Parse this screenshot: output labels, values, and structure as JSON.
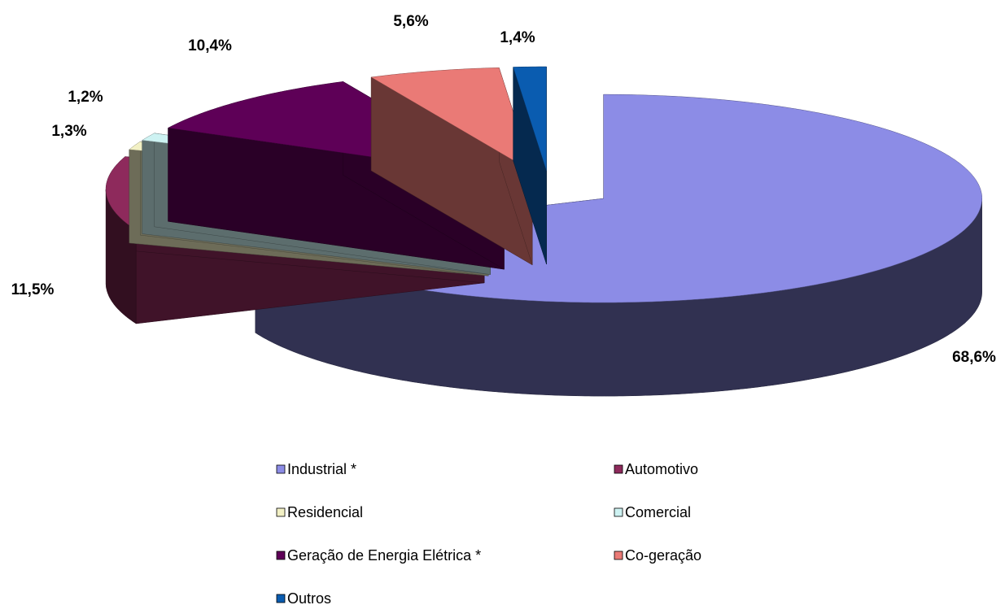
{
  "chart_data": {
    "type": "pie3d",
    "categories": [
      "Industrial *",
      "Automotivo",
      "Residencial",
      "Comercial",
      "Geração de Energia Elétrica *",
      "Co-geração",
      "Outros"
    ],
    "values": [
      68.6,
      11.5,
      1.3,
      1.2,
      10.4,
      5.6,
      1.4
    ],
    "value_labels": [
      "68,6%",
      "11,5%",
      "1,3%",
      "1,2%",
      "10,4%",
      "5,6%",
      "1,4%"
    ],
    "colors": [
      "#8c8ce6",
      "#8e2a5c",
      "#f2f0c4",
      "#cdf2f2",
      "#5e0057",
      "#ea7a76",
      "#0a5cb0"
    ],
    "legend": "bottom"
  }
}
